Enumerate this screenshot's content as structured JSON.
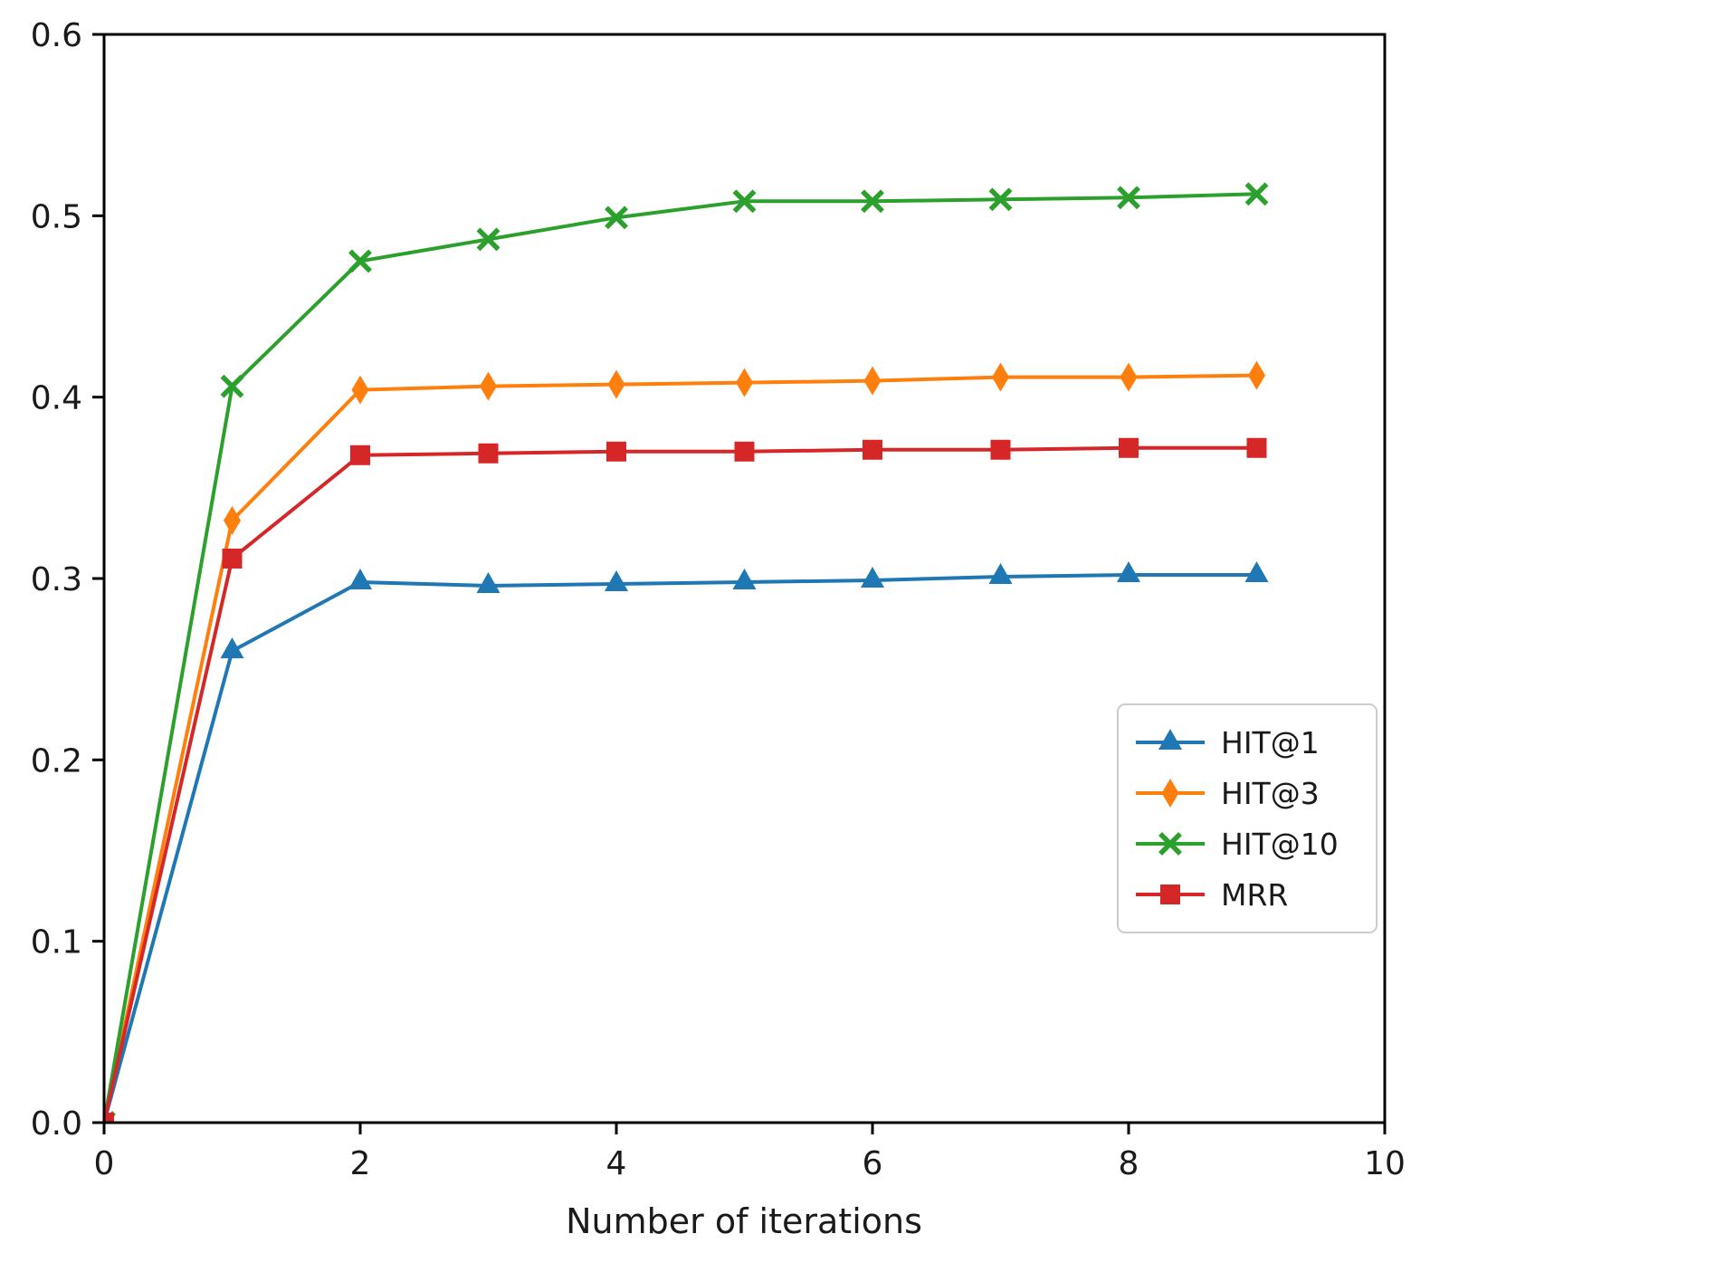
{
  "figure": {
    "background": "#ffffff",
    "frame_color": "#000000",
    "tick_color": "#000000",
    "text_color": "#1a1a1a",
    "legend_border_color": "#cccccc"
  },
  "chart_data": {
    "type": "line",
    "title": "",
    "xlabel": "Number of iterations",
    "ylabel": "",
    "xlim": [
      0,
      10
    ],
    "ylim": [
      0.0,
      0.6
    ],
    "xticks": [
      0,
      2,
      4,
      6,
      8,
      10
    ],
    "yticks": [
      0.0,
      0.1,
      0.2,
      0.3,
      0.4,
      0.5,
      0.6
    ],
    "grid": false,
    "legend_position": "lower right",
    "x": [
      0,
      1,
      2,
      3,
      4,
      5,
      6,
      7,
      8,
      9
    ],
    "series": [
      {
        "name": "HIT@1",
        "color": "#1f77b4",
        "marker": "triangle",
        "values": [
          0.0,
          0.26,
          0.298,
          0.296,
          0.297,
          0.298,
          0.299,
          0.301,
          0.302,
          0.302
        ]
      },
      {
        "name": "HIT@3",
        "color": "#ff7f0e",
        "marker": "diamond",
        "values": [
          0.0,
          0.332,
          0.404,
          0.406,
          0.407,
          0.408,
          0.409,
          0.411,
          0.411,
          0.412
        ]
      },
      {
        "name": "HIT@10",
        "color": "#2ca02c",
        "marker": "x",
        "values": [
          0.0,
          0.406,
          0.475,
          0.487,
          0.499,
          0.508,
          0.508,
          0.509,
          0.51,
          0.512
        ]
      },
      {
        "name": "MRR",
        "color": "#d62728",
        "marker": "square",
        "values": [
          0.0,
          0.311,
          0.368,
          0.369,
          0.37,
          0.37,
          0.371,
          0.371,
          0.372,
          0.372
        ]
      }
    ]
  }
}
